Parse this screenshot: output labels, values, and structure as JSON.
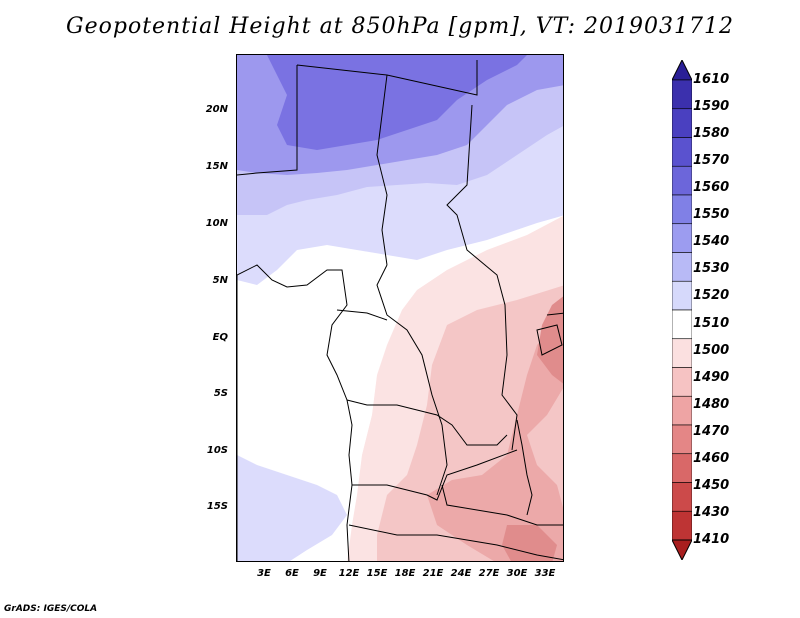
{
  "title": "Geopotential Height at 850hPa [gpm], VT: 2019031712",
  "credit": "GrADS: IGES/COLA",
  "map": {
    "lat_labels": [
      "20N",
      "15N",
      "10N",
      "5N",
      "EQ",
      "5S",
      "10S",
      "15S"
    ],
    "lon_labels": [
      "3E",
      "6E",
      "9E",
      "12E",
      "15E",
      "18E",
      "21E",
      "24E",
      "27E",
      "30E",
      "33E"
    ]
  },
  "colorbar": {
    "levels": [
      "1610",
      "1590",
      "1580",
      "1570",
      "1560",
      "1550",
      "1540",
      "1530",
      "1520",
      "1510",
      "1500",
      "1490",
      "1480",
      "1470",
      "1460",
      "1450",
      "1430",
      "1410"
    ],
    "colors": [
      "#2a1f96",
      "#3b30ad",
      "#4a40c0",
      "#5a52cf",
      "#6c66da",
      "#8080e6",
      "#9c9cf0",
      "#b8baf6",
      "#d6d9fb",
      "#ffffff",
      "#fbe0e0",
      "#f6c3c3",
      "#eea4a4",
      "#e48686",
      "#d96868",
      "#cc4a4a",
      "#be3434",
      "#a81e1e"
    ]
  },
  "colors": {
    "purple_dark": "#7a72e2",
    "purple_mid": "#9d98ee",
    "purple_light": "#c6c4f7",
    "lavender": "#dcdcfc",
    "pink_light": "#fbe3e3",
    "pink_mid": "#f4c6c6",
    "pink_dark": "#eca9a9",
    "red": "#e08c8c"
  }
}
